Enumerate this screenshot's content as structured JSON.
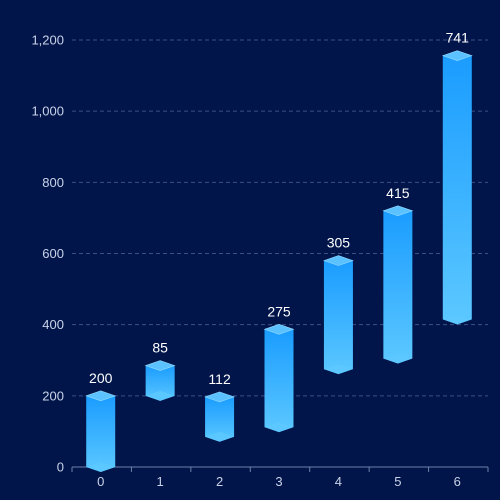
{
  "chart_data": {
    "type": "bar",
    "subtype": "floating-range-with-cylinder-caps",
    "categories": [
      "0",
      "1",
      "2",
      "3",
      "4",
      "5",
      "6"
    ],
    "series": [
      {
        "base": [
          0,
          200,
          85,
          112,
          275,
          305,
          415
        ],
        "values": [
          200,
          85,
          112,
          275,
          305,
          415,
          741
        ],
        "top": [
          200,
          285,
          197,
          387,
          580,
          720,
          1156
        ]
      }
    ],
    "data_labels": [
      "200",
      "85",
      "112",
      "275",
      "305",
      "415",
      "741"
    ],
    "ylim": [
      0,
      1200
    ],
    "y_ticks": [
      0,
      200,
      400,
      600,
      800,
      1000,
      1200
    ],
    "y_tick_labels": [
      "0",
      "200",
      "400",
      "600",
      "800",
      "1,000",
      "1,200"
    ],
    "grid": true,
    "legend": "none"
  },
  "colors": {
    "background": "#02154a",
    "bar_top": "#1a9cff",
    "bar_bottom": "#5cc8ff",
    "cap": "#5cc2ff",
    "cap_edge": "#8fd8ff",
    "grid": "#3a4f86",
    "axis": "#6f7fa8",
    "tick_text": "#c9d3e8",
    "label_text": "#ffffff"
  }
}
